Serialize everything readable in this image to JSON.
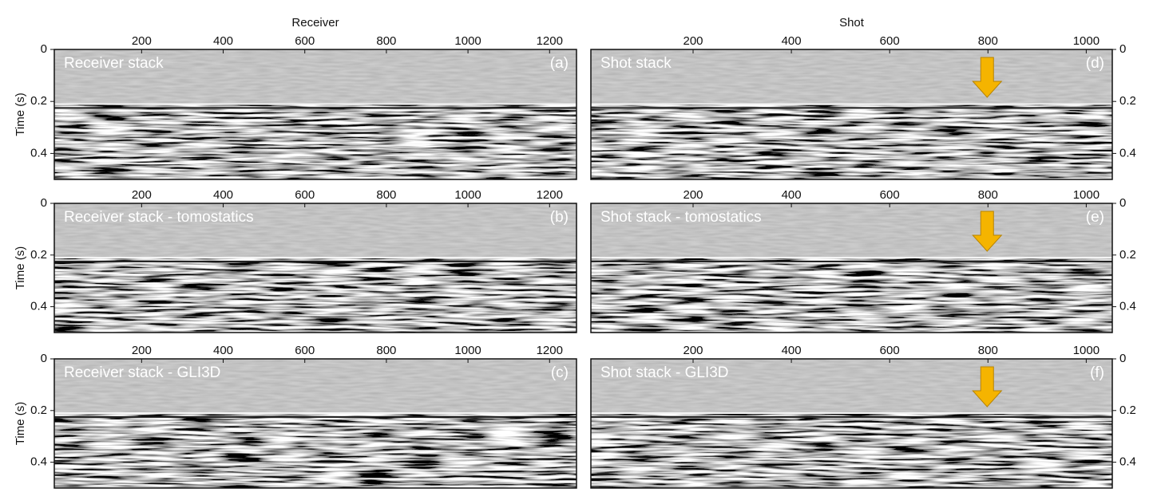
{
  "chart_data": [
    {
      "type": "image",
      "title": "Receiver stack",
      "panel_label": "(a)",
      "x_label": "Receiver",
      "y_label": "Time (s)",
      "y_axis_side": "left",
      "xlim": [
        -14,
        1266
      ],
      "xticks": [
        200,
        400,
        600,
        800,
        1000,
        1200
      ],
      "ylim": [
        0,
        0.5
      ],
      "yticks": [
        0,
        0.2,
        0.4
      ]
    },
    {
      "type": "image",
      "title": "Receiver stack - tomostatics",
      "panel_label": "(b)",
      "y_label": "Time (s)",
      "y_axis_side": "left",
      "xlim": [
        -14,
        1266
      ],
      "xticks": [
        200,
        400,
        600,
        800,
        1000,
        1200
      ],
      "ylim": [
        0,
        0.5
      ],
      "yticks": [
        0,
        0.2,
        0.4
      ]
    },
    {
      "type": "image",
      "title": "Receiver stack - GLI3D",
      "panel_label": "(c)",
      "y_label": "Time (s)",
      "y_axis_side": "left",
      "xlim": [
        -14,
        1266
      ],
      "xticks": [
        200,
        400,
        600,
        800,
        1000,
        1200
      ],
      "ylim": [
        0,
        0.5
      ],
      "yticks": [
        0,
        0.2,
        0.4
      ]
    },
    {
      "type": "image",
      "title": "Shot stack",
      "panel_label": "(d)",
      "x_label": "Shot",
      "y_axis_side": "right",
      "xlim": [
        -8,
        1053
      ],
      "xticks": [
        200,
        400,
        600,
        800,
        1000
      ],
      "ylim": [
        0,
        0.5
      ],
      "yticks": [
        0,
        0.2,
        0.4
      ]
    },
    {
      "type": "image",
      "title": "Shot stack - tomostatics",
      "panel_label": "(e)",
      "y_axis_side": "right",
      "xlim": [
        -8,
        1053
      ],
      "xticks": [
        200,
        400,
        600,
        800,
        1000
      ],
      "ylim": [
        0,
        0.5
      ],
      "yticks": [
        0,
        0.2,
        0.4
      ]
    },
    {
      "type": "image",
      "title": "Shot stack - GLI3D",
      "panel_label": "(f)",
      "y_axis_side": "right",
      "xlim": [
        -8,
        1053
      ],
      "xticks": [
        200,
        400,
        600,
        800,
        1000
      ],
      "ylim": [
        0,
        0.5
      ],
      "yticks": [
        0,
        0.2,
        0.4
      ]
    }
  ]
}
